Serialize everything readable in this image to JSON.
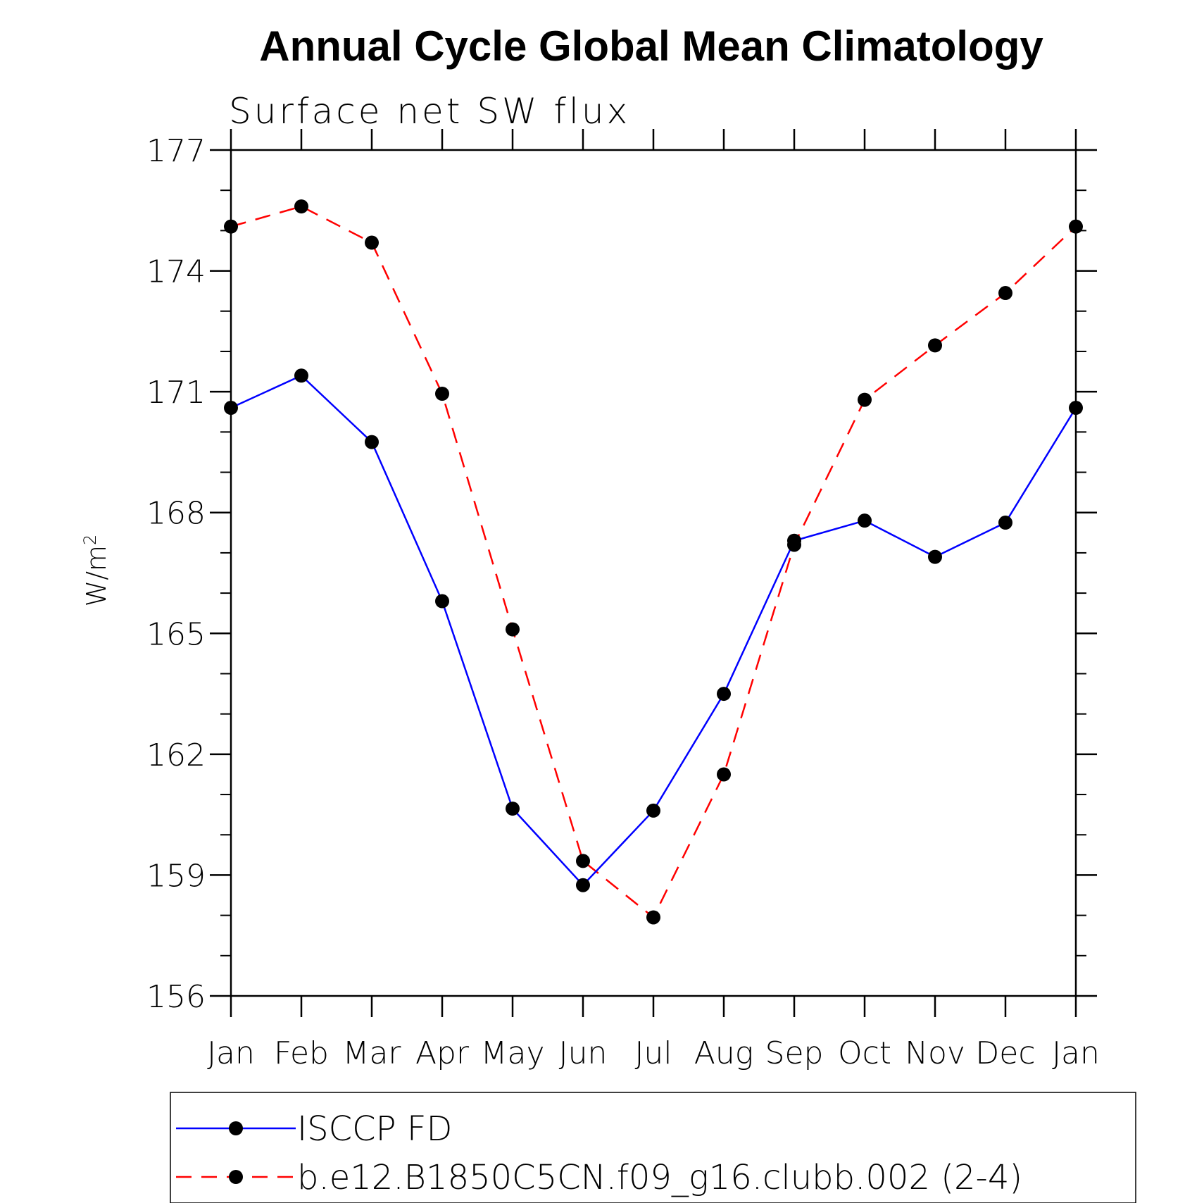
{
  "chart_data": {
    "type": "line",
    "title": "Annual Cycle Global Mean Climatology",
    "subtitle": "Surface net SW flux",
    "ylabel": "W/m",
    "ylabel_superscript": "2",
    "xlabel": "",
    "categories": [
      "Jan",
      "Feb",
      "Mar",
      "Apr",
      "May",
      "Jun",
      "Jul",
      "Aug",
      "Sep",
      "Oct",
      "Nov",
      "Dec",
      "Jan"
    ],
    "ylim": [
      156,
      177
    ],
    "yticks": [
      156,
      159,
      162,
      165,
      168,
      171,
      174,
      177
    ],
    "y_minor_step": 1,
    "grid": false,
    "legend_position": "bottom",
    "series": [
      {
        "name": "ISCCP FD",
        "color": "#0000ff",
        "dash": "solid",
        "marker": "filled-circle",
        "values": [
          170.6,
          171.4,
          169.75,
          165.8,
          160.65,
          158.75,
          160.6,
          163.5,
          167.3,
          167.8,
          166.9,
          167.75,
          170.6
        ]
      },
      {
        "name": "b.e12.B1850C5CN.f09_g16.clubb.002 (2-4)",
        "color": "#ff0000",
        "dash": "dashed",
        "marker": "filled-circle",
        "values": [
          175.1,
          175.6,
          174.7,
          170.95,
          165.1,
          159.35,
          157.95,
          161.5,
          167.2,
          170.8,
          172.15,
          173.45,
          175.1
        ]
      }
    ]
  }
}
